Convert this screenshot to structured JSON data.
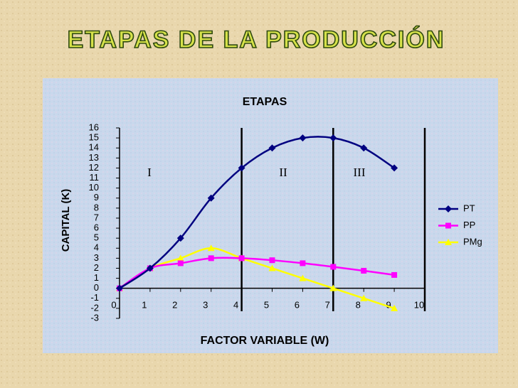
{
  "heading": "ETAPAS DE LA PRODUCCIÓN",
  "chart_data": {
    "type": "line",
    "title": "ETAPAS",
    "x_label": "FACTOR VARIABLE  (W)",
    "y_label": "CAPITAL (K)",
    "x": [
      0,
      1,
      2,
      3,
      4,
      5,
      6,
      7,
      8,
      9
    ],
    "series": [
      {
        "name": "PT",
        "color": "#000080",
        "marker": "diamond",
        "values": [
          0,
          2,
          5,
          9,
          12,
          14,
          15,
          15,
          14,
          12
        ]
      },
      {
        "name": "PP",
        "color": "#ff00ff",
        "marker": "square",
        "values": [
          0,
          2,
          2.5,
          3,
          3,
          2.8,
          2.5,
          2.14,
          1.75,
          1.33
        ]
      },
      {
        "name": "PMg",
        "color": "#ffff00",
        "marker": "triangle",
        "values": [
          0,
          2,
          3,
          4,
          3,
          2,
          1,
          0,
          -1,
          -2
        ]
      }
    ],
    "xlim": [
      0,
      10
    ],
    "xticks": [
      0,
      1,
      2,
      3,
      4,
      5,
      6,
      7,
      8,
      9,
      10
    ],
    "ylim": [
      -3,
      16
    ],
    "yticks": [
      -3,
      -2,
      -1,
      0,
      1,
      2,
      3,
      4,
      5,
      6,
      7,
      8,
      9,
      10,
      11,
      12,
      13,
      14,
      15,
      16
    ],
    "stage_lines": [
      4,
      7,
      10
    ],
    "stage_labels": [
      "I",
      "II",
      "III"
    ],
    "legend": "right"
  }
}
